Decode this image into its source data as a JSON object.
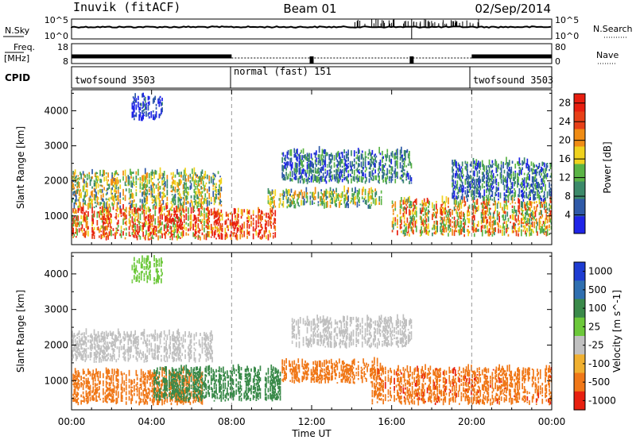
{
  "header": {
    "station": "Inuvik (fitACF)",
    "beam": "Beam 01",
    "date": "02/Sep/2014"
  },
  "aux": {
    "nsky_label": "N.Sky",
    "nsky_ticks": [
      "10^5",
      "10^0"
    ],
    "nsearch_label": "N.Search",
    "nsearch_ticks": [
      "10^5",
      "10^0"
    ],
    "freq_label": "Freq.",
    "freq_unit": "[MHz]",
    "freq_ticks": [
      "18",
      "8"
    ],
    "nave_label": "Nave",
    "nave_ticks": [
      "80",
      "0"
    ],
    "cpid_label": "CPID",
    "modes": [
      "twofsound 3503",
      "normal (fast) 151",
      "twofsound 3503"
    ]
  },
  "x_ticks": [
    "00:00",
    "04:00",
    "08:00",
    "12:00",
    "16:00",
    "20:00",
    "00:00"
  ],
  "xlabel": "Time UT",
  "chart_data": [
    {
      "type": "heatmap",
      "title": "",
      "ylabel": "Slant Range [km]",
      "xlabel": "Time UT",
      "xlim": [
        0,
        24
      ],
      "ylim": [
        180,
        4600
      ],
      "y_ticks": [
        "1000",
        "2000",
        "3000",
        "4000"
      ],
      "colorbar_label": "Power [dB]",
      "colorbar_ticks": [
        "4",
        "8",
        "12",
        "16",
        "20",
        "24",
        "28"
      ],
      "colorbar_range": [
        0,
        30
      ],
      "colors": [
        "#1f24e8",
        "#2f5aa8",
        "#3c8a6a",
        "#5bb446",
        "#f0d21e",
        "#f08c14",
        "#e84018",
        "#e81e10"
      ],
      "regions": [
        {
          "t0": 0.0,
          "t1": 6.8,
          "r0": 300,
          "r1": 1200,
          "value": 22
        },
        {
          "t0": 0.0,
          "t1": 7.5,
          "r0": 1200,
          "r1": 2200,
          "value": 14
        },
        {
          "t0": 6.8,
          "t1": 10.2,
          "r0": 300,
          "r1": 1100,
          "value": 28
        },
        {
          "t0": 9.8,
          "t1": 15.5,
          "r0": 1200,
          "r1": 1700,
          "value": 14
        },
        {
          "t0": 10.5,
          "t1": 17.0,
          "r0": 1900,
          "r1": 2800,
          "value": 8
        },
        {
          "t0": 16.0,
          "t1": 24.0,
          "r0": 400,
          "r1": 1400,
          "value": 18
        },
        {
          "t0": 19.0,
          "t1": 24.0,
          "r0": 1400,
          "r1": 2500,
          "value": 8
        },
        {
          "t0": 3.0,
          "t1": 4.5,
          "r0": 3700,
          "r1": 4400,
          "value": 4
        }
      ]
    },
    {
      "type": "heatmap",
      "title": "",
      "ylabel": "Slant Range [km]",
      "xlabel": "Time UT",
      "xlim": [
        0,
        24
      ],
      "ylim": [
        180,
        4600
      ],
      "y_ticks": [
        "1000",
        "2000",
        "3000",
        "4000"
      ],
      "colorbar_label": "Velocity [m s^-1]",
      "colorbar_ticks": [
        "1000",
        "500",
        "100",
        "25",
        "-25",
        "-100",
        "-500",
        "-1000"
      ],
      "colors": [
        "#1e3cd2",
        "#2f6fb0",
        "#3a8a4a",
        "#6cc83a",
        "#c0c0c0",
        "#f0b030",
        "#f07818",
        "#e82010"
      ],
      "regions": [
        {
          "t0": 0.0,
          "t1": 6.5,
          "r0": 300,
          "r1": 1200,
          "value": -200
        },
        {
          "t0": 0.0,
          "t1": 7.0,
          "r0": 1500,
          "r1": 2300,
          "value": 0
        },
        {
          "t0": 4.0,
          "t1": 10.5,
          "r0": 400,
          "r1": 1300,
          "value": 150
        },
        {
          "t0": 10.5,
          "t1": 15.5,
          "r0": 900,
          "r1": 1500,
          "value": -300
        },
        {
          "t0": 11.0,
          "t1": 17.0,
          "r0": 1900,
          "r1": 2700,
          "value": 0
        },
        {
          "t0": 15.0,
          "t1": 24.0,
          "r0": 300,
          "r1": 1300,
          "value": -400
        },
        {
          "t0": 3.0,
          "t1": 4.5,
          "r0": 3700,
          "r1": 4400,
          "value": 50
        }
      ]
    }
  ]
}
